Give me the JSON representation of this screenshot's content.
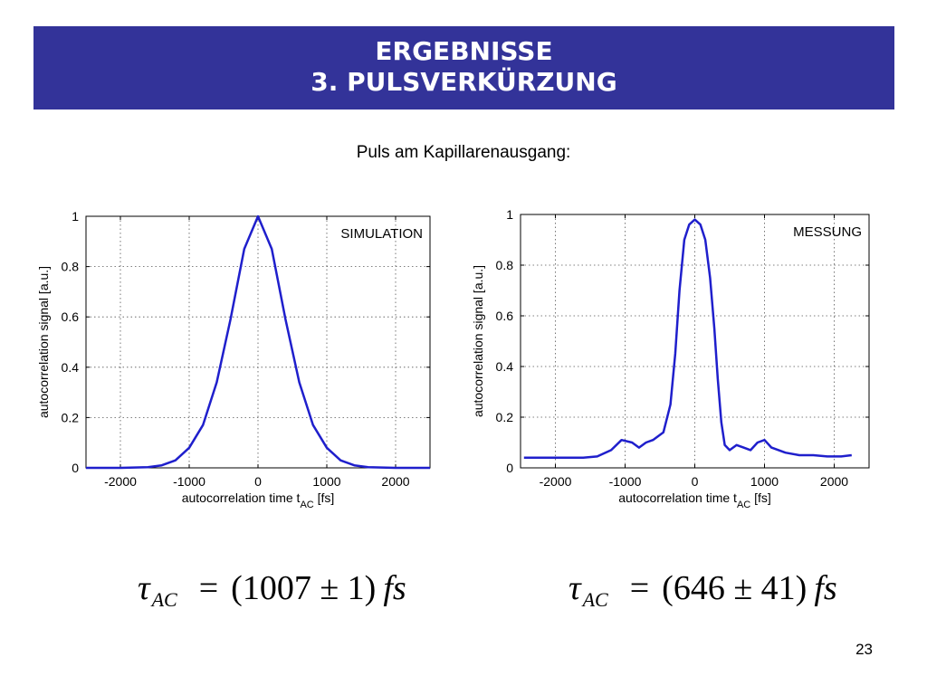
{
  "header": {
    "line1": "ERGEBNISSE",
    "line2": "3. PULSVERKÜRZUNG",
    "background_color": "#333399",
    "text_color": "#ffffff"
  },
  "subtitle": "Puls am Kapillarenausgang:",
  "chart_data": [
    {
      "type": "line",
      "annotation": "SIMULATION",
      "xlabel": "autocorrelation time t",
      "xlabel_subscript": "AC",
      "xlabel_unit": "[fs]",
      "ylabel": "autocorrelation signal [a.u.]",
      "xlim": [
        -2500,
        2500
      ],
      "ylim": [
        0,
        1
      ],
      "xticks": [
        -2000,
        -1000,
        0,
        1000,
        2000
      ],
      "xtick_labels": [
        "-2000",
        "-1000",
        "0",
        "1000",
        "2000"
      ],
      "yticks": [
        0,
        0.2,
        0.4,
        0.6,
        0.8,
        1
      ],
      "ytick_labels": [
        "0",
        "0.2",
        "0.4",
        "0.6",
        "0.8",
        "1"
      ],
      "grid": true,
      "line_color": "#1f1fcc",
      "series": [
        {
          "x": [
            -2500,
            -2000,
            -1600,
            -1400,
            -1200,
            -1000,
            -800,
            -600,
            -400,
            -200,
            0,
            200,
            400,
            600,
            800,
            1000,
            1200,
            1400,
            1600,
            2000,
            2500
          ],
          "values": [
            0,
            0,
            0.003,
            0.01,
            0.03,
            0.08,
            0.17,
            0.34,
            0.59,
            0.87,
            1.0,
            0.87,
            0.59,
            0.34,
            0.17,
            0.08,
            0.03,
            0.01,
            0.003,
            0,
            0
          ]
        }
      ]
    },
    {
      "type": "line",
      "annotation": "MESSUNG",
      "xlabel": "autocorrelation time t",
      "xlabel_subscript": "AC",
      "xlabel_unit": "[fs]",
      "ylabel": "autocorrelation signal [a.u.]",
      "xlim": [
        -2500,
        2500
      ],
      "ylim": [
        0,
        1
      ],
      "xticks": [
        -2000,
        -1000,
        0,
        1000,
        2000
      ],
      "xtick_labels": [
        "-2000",
        "-1000",
        "0",
        "1000",
        "2000"
      ],
      "yticks": [
        0,
        0.2,
        0.4,
        0.6,
        0.8,
        1
      ],
      "ytick_labels": [
        "0",
        "0.2",
        "0.4",
        "0.6",
        "0.8",
        "1"
      ],
      "grid": true,
      "line_color": "#1f1fcc",
      "series": [
        {
          "x": [
            -2450,
            -2200,
            -2000,
            -1800,
            -1600,
            -1400,
            -1200,
            -1050,
            -900,
            -800,
            -700,
            -600,
            -450,
            -350,
            -280,
            -220,
            -150,
            -80,
            0,
            80,
            150,
            220,
            280,
            330,
            380,
            430,
            500,
            600,
            700,
            800,
            900,
            1000,
            1100,
            1300,
            1500,
            1700,
            1900,
            2100,
            2250
          ],
          "values": [
            0.04,
            0.04,
            0.04,
            0.04,
            0.04,
            0.045,
            0.07,
            0.11,
            0.1,
            0.08,
            0.1,
            0.11,
            0.14,
            0.25,
            0.45,
            0.7,
            0.9,
            0.96,
            0.98,
            0.96,
            0.9,
            0.75,
            0.55,
            0.35,
            0.18,
            0.09,
            0.07,
            0.09,
            0.08,
            0.07,
            0.1,
            0.11,
            0.08,
            0.06,
            0.05,
            0.05,
            0.045,
            0.045,
            0.05
          ]
        }
      ]
    }
  ],
  "formulas": [
    {
      "symbol": "τ",
      "subscript": "AC",
      "equals": "=",
      "value": "(1007 ± 1)",
      "unit": "fs"
    },
    {
      "symbol": "τ",
      "subscript": "AC",
      "equals": "=",
      "value": "(646 ± 41)",
      "unit": "fs"
    }
  ],
  "page_number": "23"
}
